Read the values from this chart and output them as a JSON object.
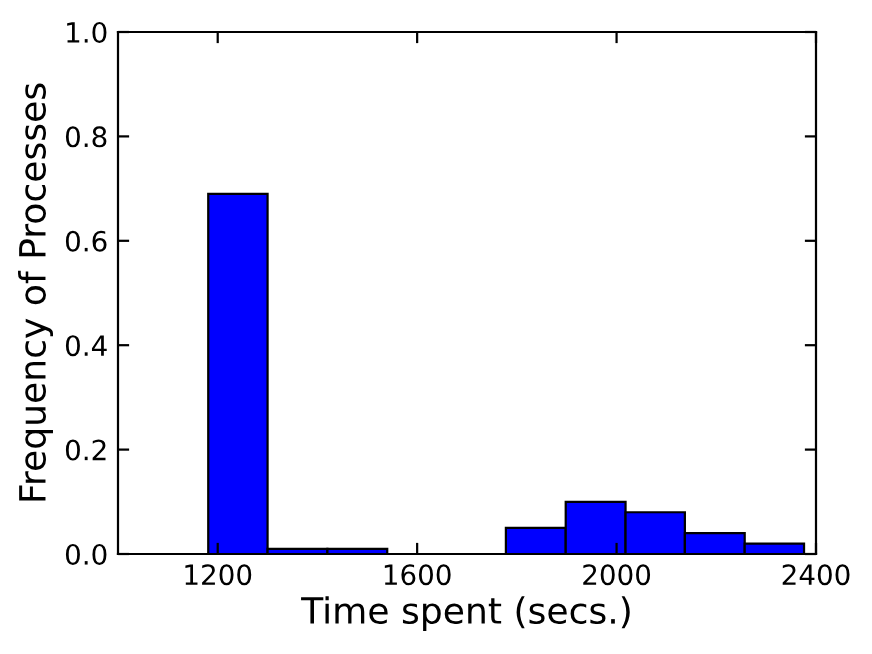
{
  "chart_data": {
    "type": "histogram",
    "xlabel": "Time spent (secs.)",
    "ylabel": "Frequency of Processes",
    "bins": [
      1181,
      1300,
      1420,
      1540,
      1659,
      1778,
      1898,
      2018,
      2137,
      2257,
      2376
    ],
    "values": [
      0.69,
      0.01,
      0.01,
      0,
      0,
      0.05,
      0.1,
      0.08,
      0.04,
      0.02
    ],
    "color": "#0000ff",
    "xlim": [
      1000,
      2400
    ],
    "xticks": [
      1200,
      1600,
      2000,
      2400
    ],
    "ylim": [
      0,
      1.0
    ],
    "yticks": [
      {
        "value": 0,
        "label": "0.0"
      },
      {
        "value": 0.2,
        "label": "0.2"
      },
      {
        "value": 0.4,
        "label": "0.4"
      },
      {
        "value": 0.6,
        "label": "0.6"
      },
      {
        "value": 0.8,
        "label": "0.8"
      },
      {
        "value": 1.0,
        "label": "1.0"
      }
    ],
    "grid": false
  }
}
